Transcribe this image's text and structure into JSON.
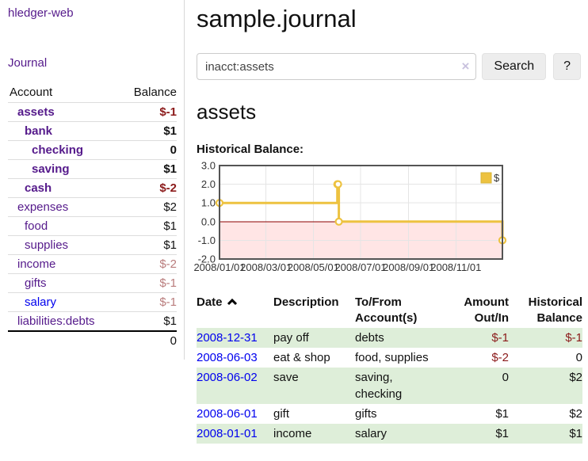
{
  "app": {
    "title": "hledger-web"
  },
  "sidebar": {
    "journal_link": "Journal",
    "accounts_table": {
      "account_header": "Account",
      "balance_header": "Balance",
      "rows": [
        {
          "account": "assets",
          "balance": "$-1",
          "indent": 1,
          "bold": true,
          "balance_tone": "neg-strong",
          "link_tone": "purple"
        },
        {
          "account": "bank",
          "balance": "$1",
          "indent": 2,
          "bold": true,
          "balance_tone": "",
          "link_tone": "purple"
        },
        {
          "account": "checking",
          "balance": "0",
          "indent": 3,
          "bold": true,
          "balance_tone": "",
          "link_tone": "purple"
        },
        {
          "account": "saving",
          "balance": "$1",
          "indent": 3,
          "bold": true,
          "balance_tone": "",
          "link_tone": "purple"
        },
        {
          "account": "cash",
          "balance": "$-2",
          "indent": 2,
          "bold": true,
          "balance_tone": "neg-strong",
          "link_tone": "purple"
        },
        {
          "account": "expenses",
          "balance": "$2",
          "indent": 1,
          "bold": false,
          "balance_tone": "",
          "link_tone": "purple"
        },
        {
          "account": "food",
          "balance": "$1",
          "indent": 2,
          "bold": false,
          "balance_tone": "",
          "link_tone": "purple"
        },
        {
          "account": "supplies",
          "balance": "$1",
          "indent": 2,
          "bold": false,
          "balance_tone": "",
          "link_tone": "purple"
        },
        {
          "account": "income",
          "balance": "$-2",
          "indent": 1,
          "bold": false,
          "balance_tone": "neg-soft",
          "link_tone": "purple"
        },
        {
          "account": "gifts",
          "balance": "$-1",
          "indent": 2,
          "bold": false,
          "balance_tone": "neg-soft",
          "link_tone": "purple"
        },
        {
          "account": "salary",
          "balance": "$-1",
          "indent": 2,
          "bold": false,
          "balance_tone": "neg-soft",
          "link_tone": "blue"
        },
        {
          "account": "liabilities:debts",
          "balance": "$1",
          "indent": 1,
          "bold": false,
          "balance_tone": "",
          "link_tone": "purple"
        }
      ],
      "total": "0"
    }
  },
  "header": {
    "title": "sample.journal"
  },
  "search": {
    "value": "inacct:assets",
    "clear_icon": "×",
    "button_label": "Search",
    "help_label": "?"
  },
  "account_page": {
    "heading": "assets",
    "chart_label": "Historical Balance:"
  },
  "chart_data": {
    "type": "line",
    "step": true,
    "title": "Historical Balance",
    "series": [
      {
        "name": "$",
        "color": "#edc240",
        "points": [
          [
            "2008-01-01",
            1
          ],
          [
            "2008-06-01",
            2
          ],
          [
            "2008-06-02",
            2
          ],
          [
            "2008-06-03",
            0
          ],
          [
            "2008-12-31",
            -1
          ]
        ]
      }
    ],
    "xlim": [
      "2008-01-01",
      "2008-12-31"
    ],
    "ylim": [
      -2,
      3
    ],
    "x_ticks": [
      "2008/01/01",
      "2008/03/01",
      "2008/05/01",
      "2008/07/01",
      "2008/09/01",
      "2008/11/01"
    ],
    "y_ticks": [
      "3.0",
      "2.0",
      "1.0",
      "0.0",
      "-1.0",
      "-2.0"
    ],
    "legend_position": "top-right",
    "grid": true,
    "negative_region_color": "#ffe5e5",
    "zero_line_color": "#8b0000",
    "grid_color": "#e5e5e5",
    "border_color": "#545454"
  },
  "register": {
    "columns": [
      {
        "label": "Date",
        "align": "left",
        "sorted": "asc"
      },
      {
        "label": "Description",
        "align": "left"
      },
      {
        "label": "To/From Account(s)",
        "align": "left"
      },
      {
        "label": "Amount Out/In",
        "align": "right"
      },
      {
        "label": "Historical Balance",
        "align": "right"
      }
    ],
    "rows": [
      {
        "date": "2008-12-31",
        "description": "pay off",
        "accounts": "debts",
        "amount": "$-1",
        "balance": "$-1",
        "amount_negative": true,
        "balance_negative": true
      },
      {
        "date": "2008-06-03",
        "description": "eat & shop",
        "accounts": "food, supplies",
        "amount": "$-2",
        "balance": "0",
        "amount_negative": true,
        "balance_negative": false
      },
      {
        "date": "2008-06-02",
        "description": "save",
        "accounts": "saving, checking",
        "amount": "0",
        "balance": "$2",
        "amount_negative": false,
        "balance_negative": false
      },
      {
        "date": "2008-06-01",
        "description": "gift",
        "accounts": "gifts",
        "amount": "$1",
        "balance": "$2",
        "amount_negative": false,
        "balance_negative": false
      },
      {
        "date": "2008-01-01",
        "description": "income",
        "accounts": "salary",
        "amount": "$1",
        "balance": "$1",
        "amount_negative": false,
        "balance_negative": false
      }
    ]
  },
  "colors": {
    "link_purple": "#551a8b",
    "link_blue": "#0000ee",
    "negative_strong": "#8b1a1a",
    "negative_soft": "#b97c7c",
    "row_stripe_green": "#deeed9",
    "series_gold": "#edc240",
    "negative_region_pink": "#ffe5e5",
    "zero_line_red": "#8b0000"
  }
}
